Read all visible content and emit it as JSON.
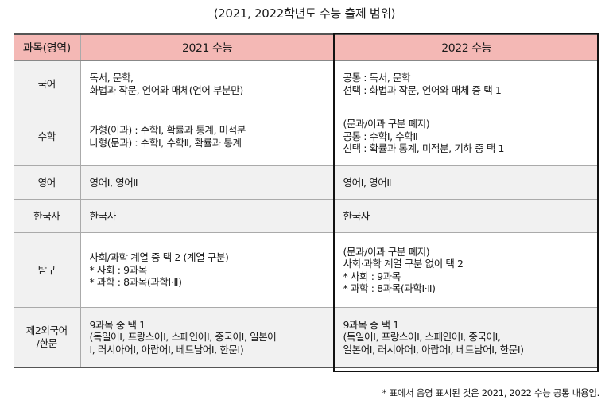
{
  "title": "⟨2021, 2022학년도 수능 출제 범위⟩",
  "headers": {
    "subject": "과목(영역)",
    "y2021": "2021 수능",
    "y2022": "2022 수능"
  },
  "rows": [
    {
      "subject": [
        "국어"
      ],
      "y2021": [
        "독서, 문학,",
        "화법과 작문, 언어와 매체(언어 부분만)"
      ],
      "y2022": [
        "공통 : 독서, 문학",
        "선택 : 화법과 작문, 언어와 매체 중 택 1"
      ]
    },
    {
      "subject": [
        "수학"
      ],
      "y2021": [
        "가형(이과) : 수학Ⅰ, 확률과 통계, 미적분",
        "나형(문과) : 수학Ⅰ, 수학Ⅱ, 확률과 통계"
      ],
      "y2022": [
        "(문과/이과 구분 폐지)",
        "공통 : 수학Ⅰ, 수학Ⅱ",
        "선택 : 확률과 통계, 미적분, 기하 중 택 1"
      ]
    },
    {
      "subject": [
        "영어"
      ],
      "y2021": [
        "영어Ⅰ, 영어Ⅱ"
      ],
      "y2022": [
        "영어Ⅰ, 영어Ⅱ"
      ]
    },
    {
      "subject": [
        "한국사"
      ],
      "y2021": [
        "한국사"
      ],
      "y2022": [
        "한국사"
      ]
    },
    {
      "subject": [
        "탐구"
      ],
      "y2021": [
        "사회/과학 계열 중 택 2 (계열 구분)",
        "* 사회 : 9과목",
        "* 과학 : 8과목(과학Ⅰ·Ⅱ)"
      ],
      "y2022": [
        "(문과/이과 구분 폐지)",
        "사회·과학 계열 구분 없이 택 2",
        "* 사회 : 9과목",
        "* 과학 : 8과목(과학Ⅰ·Ⅱ)"
      ]
    },
    {
      "subject": [
        "제2외국어",
        "/한문"
      ],
      "y2021": [
        "9과목 중 택 1",
        "(독일어Ⅰ, 프랑스어Ⅰ, 스페인어Ⅰ, 중국어Ⅰ, 일본어",
        " Ⅰ, 러시아어Ⅰ, 아랍어Ⅰ, 베트남어Ⅰ, 한문Ⅰ)"
      ],
      "y2022": [
        "9과목 중 택 1",
        "(독일어Ⅰ, 프랑스어Ⅰ, 스페인어Ⅰ, 중국어Ⅰ,",
        "일본어Ⅰ, 러시아어Ⅰ, 아랍어Ⅰ, 베트남어Ⅰ, 한문Ⅰ)"
      ]
    }
  ],
  "footnote": "* 표에서 음영 표시된 것은 2021, 2022 수능 공통 내용임."
}
